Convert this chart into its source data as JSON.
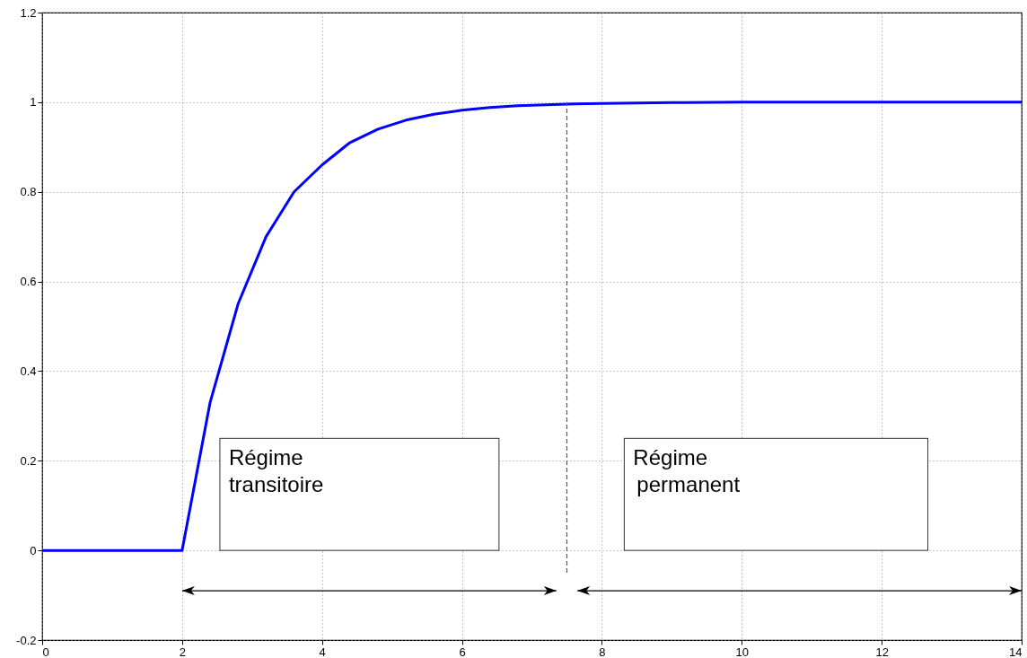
{
  "chart_data": {
    "type": "line",
    "x": [
      0,
      2,
      2.4,
      2.8,
      3.2,
      3.6,
      4.0,
      4.4,
      4.8,
      5.2,
      5.6,
      6.0,
      6.4,
      6.8,
      7.2,
      7.6,
      8,
      9,
      10,
      12,
      14
    ],
    "series": [
      {
        "color": "#0000ff",
        "line_style": "solid",
        "values": [
          0,
          0,
          0.33,
          0.55,
          0.7,
          0.8,
          0.86,
          0.91,
          0.94,
          0.96,
          0.973,
          0.982,
          0.988,
          0.992,
          0.994,
          0.996,
          0.997,
          0.999,
          1.0,
          1.0,
          1.0
        ]
      },
      {
        "color": "#555555",
        "line_style": "dashed",
        "x": [
          7.5,
          7.5
        ],
        "values": [
          -0.05,
          1.0
        ]
      }
    ],
    "xlim": [
      0,
      14
    ],
    "xticks": [
      0,
      2,
      4,
      6,
      8,
      10,
      12,
      14
    ],
    "ylim": [
      -0.2,
      1.2
    ],
    "yticks": [
      -0.2,
      0,
      0.2,
      0.4,
      0.6,
      0.8,
      1,
      1.2
    ],
    "grid": true,
    "annotations": [
      "Régime transitoire",
      "Régime permanent"
    ]
  }
}
